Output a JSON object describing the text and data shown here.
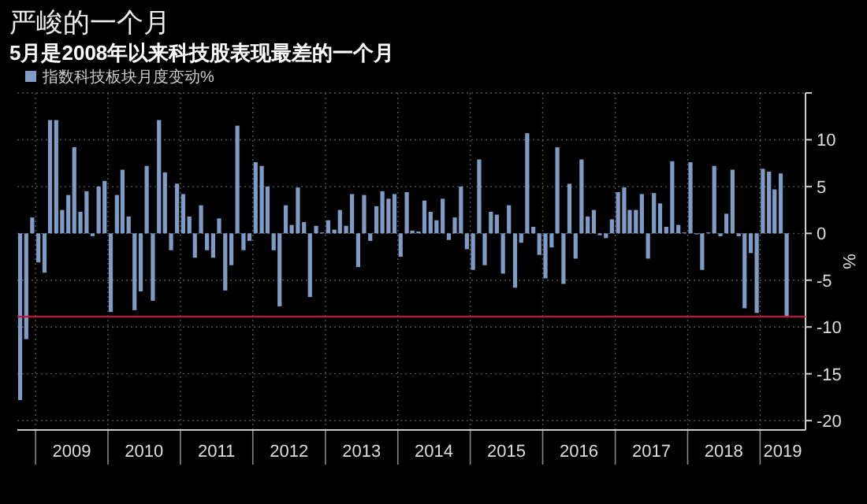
{
  "chart_data": {
    "type": "bar",
    "title": "严峻的一个月",
    "subtitle": "5月是2008年以来科技股表现最差的一个月",
    "ylabel": "%",
    "x": [
      "2008-10",
      "2008-11",
      "2008-12",
      "2009-01",
      "2009-02",
      "2009-03",
      "2009-04",
      "2009-05",
      "2009-06",
      "2009-07",
      "2009-08",
      "2009-09",
      "2009-10",
      "2009-11",
      "2009-12",
      "2010-01",
      "2010-02",
      "2010-03",
      "2010-04",
      "2010-05",
      "2010-06",
      "2010-07",
      "2010-08",
      "2010-09",
      "2010-10",
      "2010-11",
      "2010-12",
      "2011-01",
      "2011-02",
      "2011-03",
      "2011-04",
      "2011-05",
      "2011-06",
      "2011-07",
      "2011-08",
      "2011-09",
      "2011-10",
      "2011-11",
      "2011-12",
      "2012-01",
      "2012-02",
      "2012-03",
      "2012-04",
      "2012-05",
      "2012-06",
      "2012-07",
      "2012-08",
      "2012-09",
      "2012-10",
      "2012-11",
      "2012-12",
      "2013-01",
      "2013-02",
      "2013-03",
      "2013-04",
      "2013-05",
      "2013-06",
      "2013-07",
      "2013-08",
      "2013-09",
      "2013-10",
      "2013-11",
      "2013-12",
      "2014-01",
      "2014-02",
      "2014-03",
      "2014-04",
      "2014-05",
      "2014-06",
      "2014-07",
      "2014-08",
      "2014-09",
      "2014-10",
      "2014-11",
      "2014-12",
      "2015-01",
      "2015-02",
      "2015-03",
      "2015-04",
      "2015-05",
      "2015-06",
      "2015-07",
      "2015-08",
      "2015-09",
      "2015-10",
      "2015-11",
      "2015-12",
      "2016-01",
      "2016-02",
      "2016-03",
      "2016-04",
      "2016-05",
      "2016-06",
      "2016-07",
      "2016-08",
      "2016-09",
      "2016-10",
      "2016-11",
      "2016-12",
      "2017-01",
      "2017-02",
      "2017-03",
      "2017-04",
      "2017-05",
      "2017-06",
      "2017-07",
      "2017-08",
      "2017-09",
      "2017-10",
      "2017-11",
      "2017-12",
      "2018-01",
      "2018-02",
      "2018-03",
      "2018-04",
      "2018-05",
      "2018-06",
      "2018-07",
      "2018-08",
      "2018-09",
      "2018-10",
      "2018-11",
      "2018-12",
      "2019-01",
      "2019-02",
      "2019-03",
      "2019-04",
      "2019-05"
    ],
    "series": [
      {
        "name": "指数科技板块月度变动%",
        "color": "#7f9cc6",
        "values": [
          -17.8,
          -11.3,
          1.7,
          -3.1,
          -4.2,
          12.1,
          12.1,
          2.5,
          4.1,
          9.2,
          2.3,
          4.5,
          -0.3,
          5.0,
          5.6,
          -8.4,
          4.1,
          6.8,
          1.8,
          -8.2,
          -6.2,
          7.2,
          -7.2,
          12.1,
          6.5,
          -1.8,
          5.3,
          4.2,
          1.8,
          -2.6,
          3.0,
          -1.8,
          -2.6,
          1.6,
          -6.1,
          -3.4,
          11.5,
          -1.8,
          -0.8,
          7.6,
          7.2,
          5.0,
          -1.8,
          -7.8,
          3.0,
          0.9,
          4.9,
          1.2,
          -6.8,
          0.8,
          0.1,
          1.4,
          0.4,
          2.5,
          0.8,
          4.2,
          -3.6,
          4.1,
          -0.8,
          2.9,
          4.5,
          3.7,
          4.2,
          -2.5,
          4.4,
          0.3,
          0.2,
          3.5,
          2.3,
          1.4,
          3.7,
          -0.7,
          1.7,
          5.0,
          -1.7,
          -3.9,
          7.9,
          -3.4,
          2.3,
          2.0,
          -4.3,
          3.0,
          -5.8,
          -1.0,
          10.7,
          0.7,
          -2.3,
          -4.8,
          -1.5,
          9.2,
          -5.4,
          5.3,
          -2.7,
          7.9,
          1.8,
          2.5,
          -0.2,
          -0.5,
          1.5,
          4.4,
          4.9,
          2.5,
          2.5,
          4.2,
          -2.7,
          4.3,
          3.2,
          0.7,
          7.7,
          0.9,
          0.1,
          7.6,
          -0.1,
          -3.9,
          0.1,
          7.2,
          -0.3,
          2.1,
          6.8,
          -0.3,
          -8.0,
          -2.1,
          -8.5,
          6.9,
          6.6,
          4.7,
          6.4,
          -8.8
        ]
      }
    ],
    "xlim": [
      "2008-10-01",
      "2019-08-18"
    ],
    "xticks": [
      {
        "value": "2009-01-01",
        "label": null
      },
      {
        "value": "2009-07-02",
        "label": "2009"
      },
      {
        "value": "2010-01-01",
        "label": null
      },
      {
        "value": "2010-07-02",
        "label": "2010"
      },
      {
        "value": "2011-01-01",
        "label": null
      },
      {
        "value": "2011-07-02",
        "label": "2011"
      },
      {
        "value": "2012-01-01",
        "label": null
      },
      {
        "value": "2012-07-02",
        "label": "2012"
      },
      {
        "value": "2013-01-01",
        "label": null
      },
      {
        "value": "2013-07-02",
        "label": "2013"
      },
      {
        "value": "2014-01-01",
        "label": null
      },
      {
        "value": "2014-07-02",
        "label": "2014"
      },
      {
        "value": "2015-01-01",
        "label": null
      },
      {
        "value": "2015-07-02",
        "label": "2015"
      },
      {
        "value": "2016-01-01",
        "label": null
      },
      {
        "value": "2016-07-02",
        "label": "2016"
      },
      {
        "value": "2017-01-01",
        "label": null
      },
      {
        "value": "2017-07-02",
        "label": "2017"
      },
      {
        "value": "2018-01-01",
        "label": null
      },
      {
        "value": "2018-07-02",
        "label": "2018"
      },
      {
        "value": "2019-01-01",
        "label": null
      },
      {
        "value": "2019-04-25",
        "label": "2019"
      }
    ],
    "ylim": [
      -21,
      15
    ],
    "yticks": [
      -20,
      -15,
      -10,
      -5,
      0,
      5,
      10,
      {
        "value": 15,
        "label": null
      }
    ],
    "ref_lines": [
      {
        "axis": "y",
        "value": -8.9,
        "color": "#c0143c"
      }
    ],
    "grid": true,
    "legend": "top left"
  }
}
